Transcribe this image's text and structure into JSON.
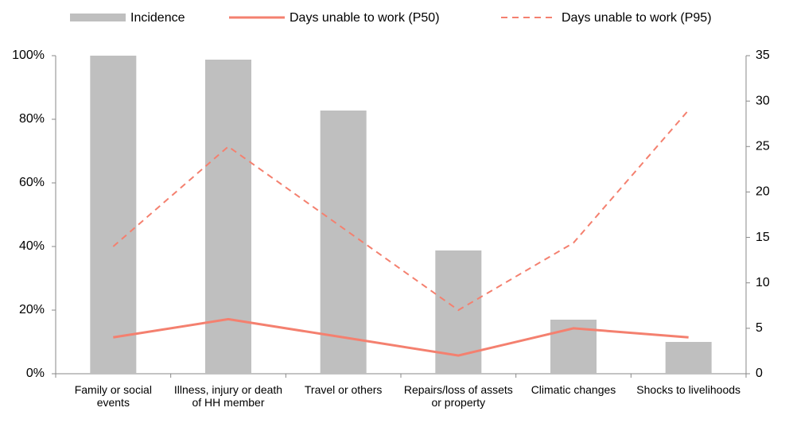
{
  "chart_data": {
    "type": "bar_line",
    "categories": [
      "Family or social events",
      "Illness, injury or death of HH member",
      "Travel or others",
      "Repairs/loss of assets or property",
      "Climatic changes",
      "Shocks to livelihoods"
    ],
    "series": [
      {
        "name": "Incidence",
        "color": "#bfbfbf",
        "type": "bar",
        "values": [
          100,
          98.75,
          82.75,
          38.75,
          17,
          10
        ]
      },
      {
        "name": "Days unable to work (P50)",
        "color": "#f4806f",
        "type": "line",
        "axis": "y2",
        "values": [
          4,
          6,
          4,
          2,
          5,
          4
        ]
      },
      {
        "name": "Days unable to work (P95)",
        "color": "#f4806f",
        "type": "line",
        "dashed": true,
        "axis": "y2",
        "values": [
          14,
          25,
          16,
          7,
          14.4,
          29
        ]
      }
    ],
    "ylim": [
      0,
      100
    ],
    "yticks": [
      {
        "value": 0,
        "label": "0%"
      },
      {
        "value": 20,
        "label": "20%"
      },
      {
        "value": 40,
        "label": "40%"
      },
      {
        "value": 60,
        "label": "60%"
      },
      {
        "value": 80,
        "label": "80%"
      },
      {
        "value": 100,
        "label": "100%"
      }
    ],
    "y2lim": [
      0,
      35
    ],
    "y2ticks": [
      0,
      5,
      10,
      15,
      20,
      25,
      30,
      35
    ],
    "legend": "top"
  }
}
